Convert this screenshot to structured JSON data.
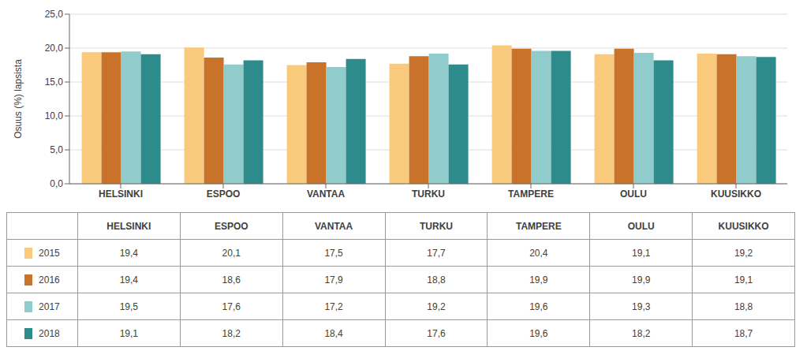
{
  "chart_data": {
    "type": "bar",
    "ylabel": "Osuus (%) lapsista",
    "categories": [
      "HELSINKI",
      "ESPOO",
      "VANTAA",
      "TURKU",
      "TAMPERE",
      "OULU",
      "KUUSIKKO"
    ],
    "series": [
      {
        "name": "2015",
        "color": "#F9C97C",
        "values": [
          19.4,
          20.1,
          17.5,
          17.7,
          20.4,
          19.1,
          19.2
        ],
        "value_labels": [
          "19,4",
          "20,1",
          "17,5",
          "17,7",
          "20,4",
          "19,1",
          "19,2"
        ]
      },
      {
        "name": "2016",
        "color": "#C8722A",
        "values": [
          19.4,
          18.6,
          17.9,
          18.8,
          19.9,
          19.9,
          19.1
        ],
        "value_labels": [
          "19,4",
          "18,6",
          "17,9",
          "18,8",
          "19,9",
          "19,9",
          "19,1"
        ]
      },
      {
        "name": "2017",
        "color": "#90CCCC",
        "values": [
          19.5,
          17.6,
          17.2,
          19.2,
          19.6,
          19.3,
          18.8
        ],
        "value_labels": [
          "19,5",
          "17,6",
          "17,2",
          "19,2",
          "19,6",
          "19,3",
          "18,8"
        ]
      },
      {
        "name": "2018",
        "color": "#2E8B8B",
        "values": [
          19.1,
          18.2,
          18.4,
          17.6,
          19.6,
          18.2,
          18.7
        ],
        "value_labels": [
          "19,1",
          "18,2",
          "18,4",
          "17,6",
          "19,6",
          "18,2",
          "18,7"
        ]
      }
    ],
    "ylim": [
      0,
      25
    ],
    "yticks": [
      {
        "value": 0,
        "label": "0,0"
      },
      {
        "value": 5,
        "label": "5,0"
      },
      {
        "value": 10,
        "label": "10,0"
      },
      {
        "value": 15,
        "label": "15,0"
      },
      {
        "value": 20,
        "label": "20,0"
      },
      {
        "value": 25,
        "label": "25,0"
      }
    ],
    "grid": true,
    "legend": "bottom"
  }
}
